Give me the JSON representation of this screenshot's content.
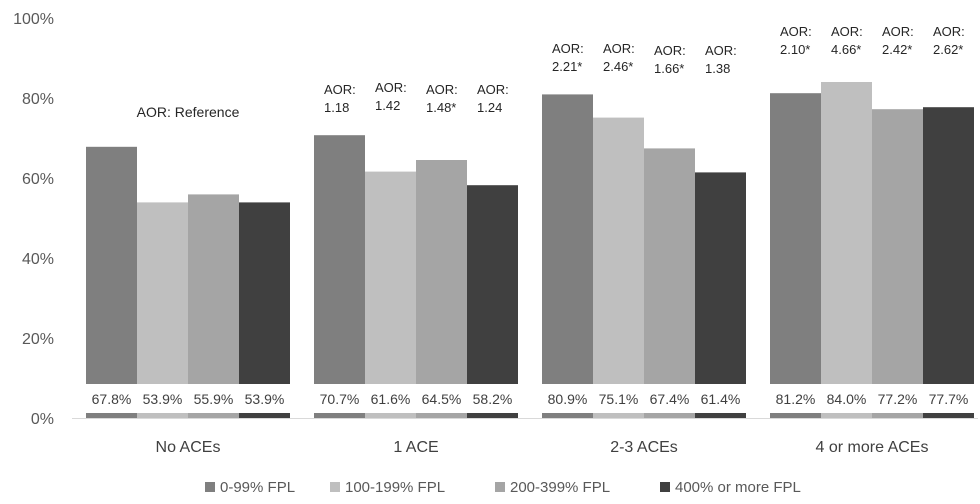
{
  "chart_data": {
    "type": "bar",
    "title": "",
    "xlabel": "",
    "ylabel": "",
    "ylim": [
      0,
      100
    ],
    "y_ticks": [
      "0%",
      "20%",
      "40%",
      "60%",
      "80%",
      "100%"
    ],
    "grid": false,
    "legend_position": "bottom",
    "categories": [
      "No ACEs",
      "1 ACE",
      "2-3 ACEs",
      "4 or more ACEs"
    ],
    "series": [
      {
        "name": "0-99% FPL",
        "color": "#7f7f7f",
        "values": [
          67.8,
          70.7,
          80.9,
          81.2
        ],
        "data_labels": [
          "67.8%",
          "70.7%",
          "80.9%",
          "81.2%"
        ]
      },
      {
        "name": "100-199% FPL",
        "color": "#bfbfbf",
        "values": [
          53.9,
          61.6,
          75.1,
          84.0
        ],
        "data_labels": [
          "53.9%",
          "61.6%",
          "75.1%",
          "84.0%"
        ]
      },
      {
        "name": "200-399% FPL",
        "color": "#a5a5a5",
        "values": [
          55.9,
          64.5,
          67.4,
          77.2
        ],
        "data_labels": [
          "55.9%",
          "64.5%",
          "67.4%",
          "77.2%"
        ]
      },
      {
        "name": "400% or more FPL",
        "color": "#404040",
        "values": [
          53.9,
          58.2,
          61.4,
          77.7
        ],
        "data_labels": [
          "53.9%",
          "58.2%",
          "61.4%",
          "77.7%"
        ]
      }
    ],
    "annotations": [
      {
        "group": 0,
        "text": "AOR: Reference"
      },
      {
        "group": 1,
        "labels": [
          [
            "AOR:",
            "1.18"
          ],
          [
            "AOR:",
            "1.42"
          ],
          [
            "AOR:",
            "1.48*"
          ],
          [
            "AOR:",
            "1.24"
          ]
        ]
      },
      {
        "group": 2,
        "labels": [
          [
            "AOR:",
            "2.21*"
          ],
          [
            "AOR:",
            "2.46*"
          ],
          [
            "AOR:",
            "1.66*"
          ],
          [
            "AOR:",
            "1.38"
          ]
        ]
      },
      {
        "group": 3,
        "labels": [
          [
            "AOR:",
            "2.10*"
          ],
          [
            "AOR:",
            "4.66*"
          ],
          [
            "AOR:",
            "2.42*"
          ],
          [
            "AOR:",
            "2.62*"
          ]
        ]
      }
    ]
  }
}
